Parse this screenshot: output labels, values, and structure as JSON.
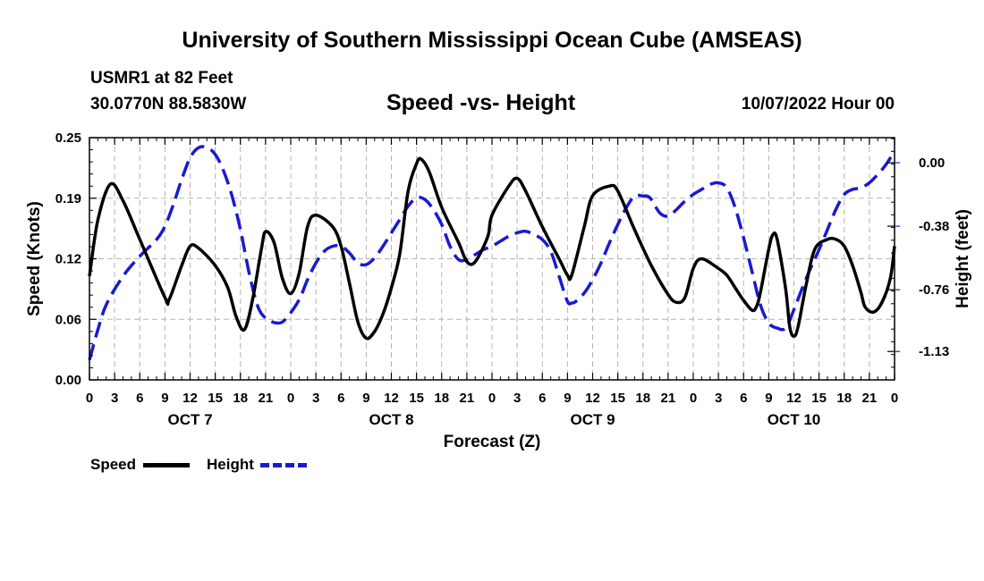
{
  "title": "University of Southern Mississippi Ocean Cube (AMSEAS)",
  "station": "USMR1 at 82 Feet",
  "coords": "30.0770N  88.5830W",
  "subtitle": "Speed -vs- Height",
  "datetime": "10/07/2022 Hour 00",
  "legend": {
    "speed": "Speed",
    "height": "Height"
  },
  "colors": {
    "speed": "#000000",
    "height": "#1a1ad0",
    "grid": "#b4b4b4"
  },
  "chart_data": {
    "type": "line",
    "xlabel": "Forecast (Z)",
    "ylabel": "Speed (Knots)",
    "y2label": "Height (feet)",
    "ylim": [
      0,
      0.25
    ],
    "y2lim": [
      -1.3,
      0.15
    ],
    "xlim": [
      0,
      96
    ],
    "grid": true,
    "legend_position": "bottom-left",
    "yticks": [
      {
        "v": 0,
        "label": "0.00"
      },
      {
        "v": 0.0625,
        "label": "0.06"
      },
      {
        "v": 0.125,
        "label": "0.12"
      },
      {
        "v": 0.1875,
        "label": "0.19"
      },
      {
        "v": 0.25,
        "label": "0.25"
      }
    ],
    "y2ticks": [
      {
        "v": 0.0,
        "label": "0.00"
      },
      {
        "v": -0.38,
        "label": "-0.38"
      },
      {
        "v": -0.76,
        "label": "-0.76"
      },
      {
        "v": -1.13,
        "label": "-1.13"
      }
    ],
    "xticks": [
      {
        "h": 0,
        "label": "0"
      },
      {
        "h": 3,
        "label": "3"
      },
      {
        "h": 6,
        "label": "6"
      },
      {
        "h": 9,
        "label": "9"
      },
      {
        "h": 12,
        "label": "12"
      },
      {
        "h": 15,
        "label": "15"
      },
      {
        "h": 18,
        "label": "18"
      },
      {
        "h": 21,
        "label": "21"
      },
      {
        "h": 24,
        "label": "0"
      },
      {
        "h": 27,
        "label": "3"
      },
      {
        "h": 30,
        "label": "6"
      },
      {
        "h": 33,
        "label": "9"
      },
      {
        "h": 36,
        "label": "12"
      },
      {
        "h": 39,
        "label": "15"
      },
      {
        "h": 42,
        "label": "18"
      },
      {
        "h": 45,
        "label": "21"
      },
      {
        "h": 48,
        "label": "0"
      },
      {
        "h": 51,
        "label": "3"
      },
      {
        "h": 54,
        "label": "6"
      },
      {
        "h": 57,
        "label": "9"
      },
      {
        "h": 60,
        "label": "12"
      },
      {
        "h": 63,
        "label": "15"
      },
      {
        "h": 66,
        "label": "18"
      },
      {
        "h": 69,
        "label": "21"
      },
      {
        "h": 72,
        "label": "0"
      },
      {
        "h": 75,
        "label": "3"
      },
      {
        "h": 78,
        "label": "6"
      },
      {
        "h": 81,
        "label": "9"
      },
      {
        "h": 84,
        "label": "12"
      },
      {
        "h": 87,
        "label": "15"
      },
      {
        "h": 90,
        "label": "18"
      },
      {
        "h": 93,
        "label": "21"
      },
      {
        "h": 96,
        "label": "0"
      }
    ],
    "day_labels": [
      {
        "h": 12,
        "label": "OCT 7"
      },
      {
        "h": 36,
        "label": "OCT 8"
      },
      {
        "h": 60,
        "label": "OCT 9"
      },
      {
        "h": 84,
        "label": "OCT 10"
      }
    ],
    "series": [
      {
        "name": "Speed",
        "axis": "left",
        "style": "solid",
        "points": [
          [
            0,
            0.107
          ],
          [
            1,
            0.165
          ],
          [
            2.5,
            0.202
          ],
          [
            4,
            0.185
          ],
          [
            6,
            0.145
          ],
          [
            9,
            0.085
          ],
          [
            9.5,
            0.083
          ],
          [
            11,
            0.118
          ],
          [
            12,
            0.138
          ],
          [
            13,
            0.136
          ],
          [
            15,
            0.118
          ],
          [
            16.5,
            0.095
          ],
          [
            17.5,
            0.065
          ],
          [
            18.5,
            0.052
          ],
          [
            19.5,
            0.085
          ],
          [
            20.5,
            0.135
          ],
          [
            21,
            0.153
          ],
          [
            22,
            0.142
          ],
          [
            23,
            0.105
          ],
          [
            24,
            0.089
          ],
          [
            25,
            0.11
          ],
          [
            26,
            0.158
          ],
          [
            27,
            0.17
          ],
          [
            29,
            0.158
          ],
          [
            30,
            0.138
          ],
          [
            31,
            0.1
          ],
          [
            32,
            0.06
          ],
          [
            33,
            0.043
          ],
          [
            34,
            0.05
          ],
          [
            35,
            0.068
          ],
          [
            36,
            0.095
          ],
          [
            37,
            0.13
          ],
          [
            38,
            0.195
          ],
          [
            39,
            0.223
          ],
          [
            39.5,
            0.228
          ],
          [
            40.5,
            0.215
          ],
          [
            42,
            0.178
          ],
          [
            44,
            0.142
          ],
          [
            45,
            0.122
          ],
          [
            46,
            0.122
          ],
          [
            47.5,
            0.148
          ],
          [
            48,
            0.17
          ],
          [
            50,
            0.2
          ],
          [
            51,
            0.208
          ],
          [
            52,
            0.195
          ],
          [
            54,
            0.158
          ],
          [
            56,
            0.125
          ],
          [
            57,
            0.108
          ],
          [
            57.5,
            0.108
          ],
          [
            59,
            0.158
          ],
          [
            60,
            0.19
          ],
          [
            62,
            0.2
          ],
          [
            63,
            0.195
          ],
          [
            65,
            0.155
          ],
          [
            67,
            0.118
          ],
          [
            69,
            0.088
          ],
          [
            70,
            0.08
          ],
          [
            71,
            0.085
          ],
          [
            72,
            0.115
          ],
          [
            73,
            0.125
          ],
          [
            75,
            0.115
          ],
          [
            76,
            0.108
          ],
          [
            77,
            0.095
          ],
          [
            78,
            0.082
          ],
          [
            79,
            0.072
          ],
          [
            79.5,
            0.075
          ],
          [
            80,
            0.09
          ],
          [
            81,
            0.135
          ],
          [
            81.5,
            0.15
          ],
          [
            82,
            0.145
          ],
          [
            83,
            0.095
          ],
          [
            83.5,
            0.055
          ],
          [
            84,
            0.045
          ],
          [
            84.5,
            0.055
          ],
          [
            85.5,
            0.1
          ],
          [
            86.5,
            0.135
          ],
          [
            88,
            0.145
          ],
          [
            89,
            0.145
          ],
          [
            90,
            0.138
          ],
          [
            91,
            0.118
          ],
          [
            92,
            0.09
          ],
          [
            92.5,
            0.075
          ],
          [
            93.5,
            0.07
          ],
          [
            94.5,
            0.08
          ],
          [
            95.5,
            0.105
          ],
          [
            96,
            0.138
          ]
        ]
      },
      {
        "name": "Height",
        "axis": "right",
        "style": "dashed",
        "points": [
          [
            0,
            -1.18
          ],
          [
            1,
            -1.0
          ],
          [
            2,
            -0.85
          ],
          [
            4,
            -0.68
          ],
          [
            6,
            -0.56
          ],
          [
            8,
            -0.46
          ],
          [
            9,
            -0.38
          ],
          [
            10,
            -0.25
          ],
          [
            11,
            -0.1
          ],
          [
            12,
            0.03
          ],
          [
            13,
            0.09
          ],
          [
            14,
            0.09
          ],
          [
            15,
            0.05
          ],
          [
            16,
            -0.05
          ],
          [
            17,
            -0.2
          ],
          [
            18,
            -0.4
          ],
          [
            19,
            -0.65
          ],
          [
            20,
            -0.85
          ],
          [
            21,
            -0.93
          ],
          [
            22.5,
            -0.96
          ],
          [
            23.5,
            -0.93
          ],
          [
            25,
            -0.82
          ],
          [
            26,
            -0.7
          ],
          [
            27,
            -0.6
          ],
          [
            28,
            -0.53
          ],
          [
            29,
            -0.5
          ],
          [
            30,
            -0.5
          ],
          [
            31,
            -0.54
          ],
          [
            32,
            -0.6
          ],
          [
            33,
            -0.61
          ],
          [
            34,
            -0.57
          ],
          [
            35,
            -0.5
          ],
          [
            36,
            -0.42
          ],
          [
            37,
            -0.34
          ],
          [
            38,
            -0.26
          ],
          [
            39,
            -0.21
          ],
          [
            40,
            -0.22
          ],
          [
            41,
            -0.28
          ],
          [
            42,
            -0.37
          ],
          [
            43,
            -0.5
          ],
          [
            44,
            -0.58
          ],
          [
            45,
            -0.58
          ],
          [
            46,
            -0.55
          ],
          [
            47,
            -0.52
          ],
          [
            48,
            -0.5
          ],
          [
            49,
            -0.47
          ],
          [
            50,
            -0.44
          ],
          [
            51,
            -0.42
          ],
          [
            52,
            -0.41
          ],
          [
            53,
            -0.43
          ],
          [
            54,
            -0.46
          ],
          [
            55,
            -0.53
          ],
          [
            56,
            -0.68
          ],
          [
            57,
            -0.83
          ],
          [
            57.5,
            -0.84
          ],
          [
            58,
            -0.83
          ],
          [
            59,
            -0.78
          ],
          [
            60,
            -0.7
          ],
          [
            61,
            -0.6
          ],
          [
            62,
            -0.48
          ],
          [
            63,
            -0.37
          ],
          [
            64,
            -0.27
          ],
          [
            65,
            -0.2
          ],
          [
            66,
            -0.2
          ],
          [
            66.5,
            -0.2
          ],
          [
            67,
            -0.22
          ],
          [
            68,
            -0.3
          ],
          [
            69,
            -0.32
          ],
          [
            70,
            -0.28
          ],
          [
            71,
            -0.23
          ],
          [
            72,
            -0.19
          ],
          [
            73,
            -0.16
          ],
          [
            74,
            -0.13
          ],
          [
            75,
            -0.12
          ],
          [
            76,
            -0.15
          ],
          [
            77,
            -0.27
          ],
          [
            78,
            -0.45
          ],
          [
            79,
            -0.65
          ],
          [
            80,
            -0.85
          ],
          [
            81,
            -0.96
          ],
          [
            82,
            -0.99
          ],
          [
            83,
            -0.99
          ],
          [
            84,
            -0.88
          ],
          [
            85,
            -0.75
          ],
          [
            86,
            -0.63
          ],
          [
            87,
            -0.52
          ],
          [
            88,
            -0.4
          ],
          [
            89,
            -0.28
          ],
          [
            90,
            -0.19
          ],
          [
            91,
            -0.16
          ],
          [
            92,
            -0.15
          ],
          [
            93,
            -0.12
          ],
          [
            94,
            -0.07
          ],
          [
            95,
            -0.01
          ],
          [
            96,
            0.07
          ]
        ]
      }
    ]
  }
}
